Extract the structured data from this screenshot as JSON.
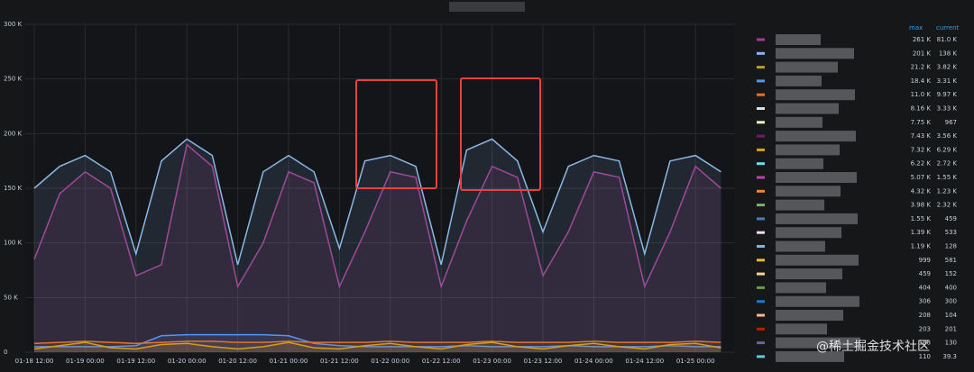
{
  "chart_data": {
    "type": "line",
    "categories": [
      "01-18 12:00",
      null,
      "01-19 00:00",
      null,
      "01-19 12:00",
      null,
      "01-20 00:00",
      null,
      "01-20 12:00",
      null,
      "01-21 00:00",
      null,
      "01-21 12:00",
      null,
      "01-22 00:00",
      null,
      "01-22 12:00",
      null,
      "01-23 00:00",
      null,
      "01-23 12:00",
      null,
      "01-24 00:00",
      null,
      "01-24 12:00",
      null,
      "01-25 00:00",
      null
    ],
    "ylim": [
      0,
      300000
    ],
    "yticks": [
      0,
      {
        "value": 50000,
        "label": "50 K"
      },
      {
        "value": 100000,
        "label": "100 K"
      },
      {
        "value": 150000,
        "label": "150 K"
      },
      {
        "value": 200000,
        "label": "200 K"
      },
      {
        "value": 250000,
        "label": "250 K"
      },
      {
        "value": 300000,
        "label": "300 K"
      }
    ],
    "grid": true,
    "series": [
      {
        "color": "#a23b8f",
        "values": [
          85000,
          145000,
          165000,
          150000,
          70000,
          80000,
          190000,
          170000,
          60000,
          100000,
          165000,
          155000,
          60000,
          110000,
          165000,
          160000,
          60000,
          120000,
          170000,
          160000,
          70000,
          110000,
          165000,
          160000,
          60000,
          110000,
          170000,
          150000
        ]
      },
      {
        "color": "#8ab8e6",
        "values": [
          150000,
          170000,
          180000,
          165000,
          90000,
          175000,
          195000,
          180000,
          80000,
          165000,
          180000,
          165000,
          95000,
          175000,
          180000,
          170000,
          80000,
          185000,
          195000,
          175000,
          110000,
          170000,
          180000,
          175000,
          90000,
          175000,
          180000,
          165000
        ]
      },
      {
        "color": "#5794f2",
        "values": [
          5000,
          5000,
          5000,
          5000,
          6000,
          15000,
          16000,
          16000,
          16000,
          16000,
          15000,
          8000,
          6000,
          5000,
          5000,
          5000,
          5000,
          6000,
          5000,
          5000,
          5000,
          6000,
          5000,
          5000,
          5000,
          6000,
          5000,
          5000
        ]
      },
      {
        "color": "#e0752d",
        "values": [
          8000,
          9000,
          10000,
          9000,
          8000,
          9000,
          10000,
          10000,
          9000,
          9000,
          10000,
          9000,
          9000,
          9000,
          10000,
          9000,
          9000,
          9000,
          10000,
          9000,
          9000,
          9000,
          10000,
          9000,
          9000,
          9000,
          10000,
          9000
        ]
      },
      {
        "color": "#d4a017",
        "values": [
          3000,
          6000,
          9000,
          4000,
          3000,
          7000,
          8000,
          5000,
          3000,
          5000,
          9000,
          4000,
          3000,
          6000,
          8000,
          5000,
          3000,
          7000,
          9000,
          5000,
          3000,
          6000,
          8000,
          5000,
          3000,
          7000,
          8000,
          4000
        ]
      }
    ]
  },
  "legend": {
    "headers": [
      "max",
      "current"
    ],
    "rows": [
      {
        "color": "#a23b8f",
        "max": "261 K",
        "current": "81.0 K"
      },
      {
        "color": "#8ab8e6",
        "max": "201 K",
        "current": "138 K"
      },
      {
        "color": "#b59a2e",
        "max": "21.2 K",
        "current": "3.82 K"
      },
      {
        "color": "#5794f2",
        "max": "18.4 K",
        "current": "3.31 K"
      },
      {
        "color": "#e0752d",
        "max": "11.0 K",
        "current": "9.97 K"
      },
      {
        "color": "#e0e0e0",
        "max": "8.16 K",
        "current": "3.33 K"
      },
      {
        "color": "#f2f2c0",
        "max": "7.75 K",
        "current": "967"
      },
      {
        "color": "#6d1f62",
        "max": "7.43 K",
        "current": "3.56 K"
      },
      {
        "color": "#d4a017",
        "max": "7.32 K",
        "current": "6.29 K"
      },
      {
        "color": "#70dbed",
        "max": "6.22 K",
        "current": "2.72 K"
      },
      {
        "color": "#ba43a9",
        "max": "5.07 K",
        "current": "1.55 K"
      },
      {
        "color": "#ef843c",
        "max": "4.32 K",
        "current": "1.23 K"
      },
      {
        "color": "#7eb26d",
        "max": "3.98 K",
        "current": "2.32 K"
      },
      {
        "color": "#447ebc",
        "max": "1.55 K",
        "current": "459"
      },
      {
        "color": "#f9d9f9",
        "max": "1.39 K",
        "current": "533"
      },
      {
        "color": "#82b5d8",
        "max": "1.19 K",
        "current": "128"
      },
      {
        "color": "#eab839",
        "max": "999",
        "current": "581"
      },
      {
        "color": "#f4d598",
        "max": "459",
        "current": "152"
      },
      {
        "color": "#629e51",
        "max": "404",
        "current": "400"
      },
      {
        "color": "#1f78c1",
        "max": "306",
        "current": "300"
      },
      {
        "color": "#f9ba8f",
        "max": "208",
        "current": "104"
      },
      {
        "color": "#bf1b00",
        "max": "203",
        "current": "201"
      },
      {
        "color": "#705da0",
        "max": "188",
        "current": "130"
      },
      {
        "color": "#65c5db",
        "max": "110",
        "current": "39.3"
      }
    ]
  },
  "watermark": "@稀土掘金技术社区"
}
